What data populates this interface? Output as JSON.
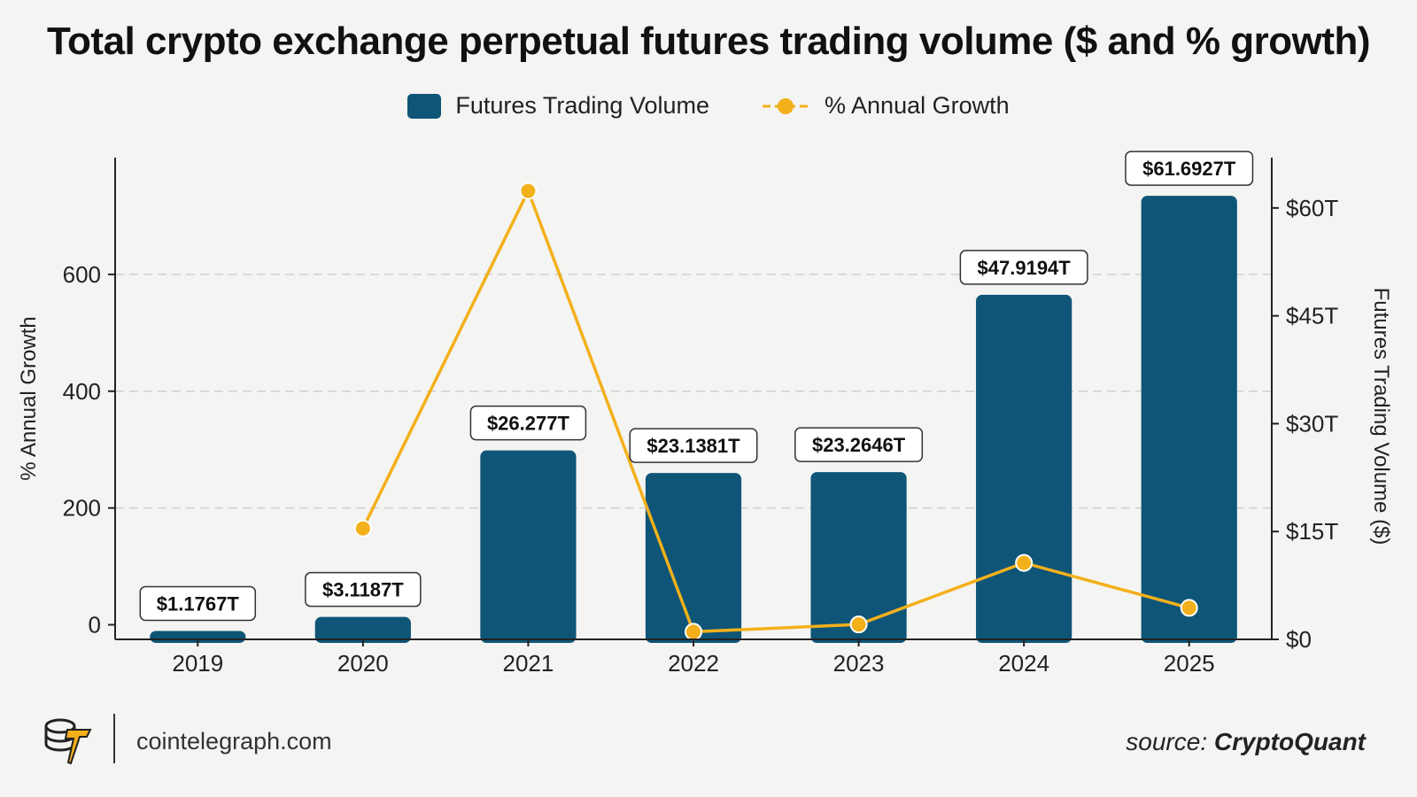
{
  "title": "Total crypto exchange perpetual futures trading volume ($ and % growth)",
  "legend": {
    "bars_label": "Futures Trading Volume",
    "line_label": "% Annual Growth"
  },
  "colors": {
    "bar": "#0e5577",
    "line": "#f3b01b",
    "grid": "#cfcfcf",
    "axis": "#222222"
  },
  "footer": {
    "site": "cointelegraph.com",
    "source_prefix": "source:",
    "source_name": "CryptoQuant",
    "logo_icon": "cointelegraph-logo-icon"
  },
  "chart_data": {
    "type": "bar",
    "categories": [
      "2019",
      "2020",
      "2021",
      "2022",
      "2023",
      "2024",
      "2025"
    ],
    "series": [
      {
        "name": "Futures Trading Volume",
        "type": "bar",
        "axis": "right",
        "values": [
          1.1767,
          3.1187,
          26.277,
          23.1381,
          23.2646,
          47.9194,
          61.6927
        ],
        "labels": [
          "$1.1767T",
          "$3.1187T",
          "$26.277T",
          "$23.1381T",
          "$23.2646T",
          "$47.9194T",
          "$61.6927T"
        ]
      },
      {
        "name": "% Annual Growth",
        "type": "line",
        "axis": "left",
        "values": [
          null,
          165,
          743,
          -12,
          0.5,
          106,
          29
        ]
      }
    ],
    "ylabel": "% Annual Growth",
    "ylabel_right": "Futures Trading Volume ($)",
    "left_ticks": [
      "0",
      "200",
      "400",
      "600"
    ],
    "left_ylim": [
      -25,
      800
    ],
    "right_ticks": [
      "$0",
      "$15T",
      "$30T",
      "$45T",
      "$60T"
    ],
    "right_ylim": [
      0,
      67
    ],
    "grid": "horizontal dashed",
    "legend_position": "top-center"
  }
}
